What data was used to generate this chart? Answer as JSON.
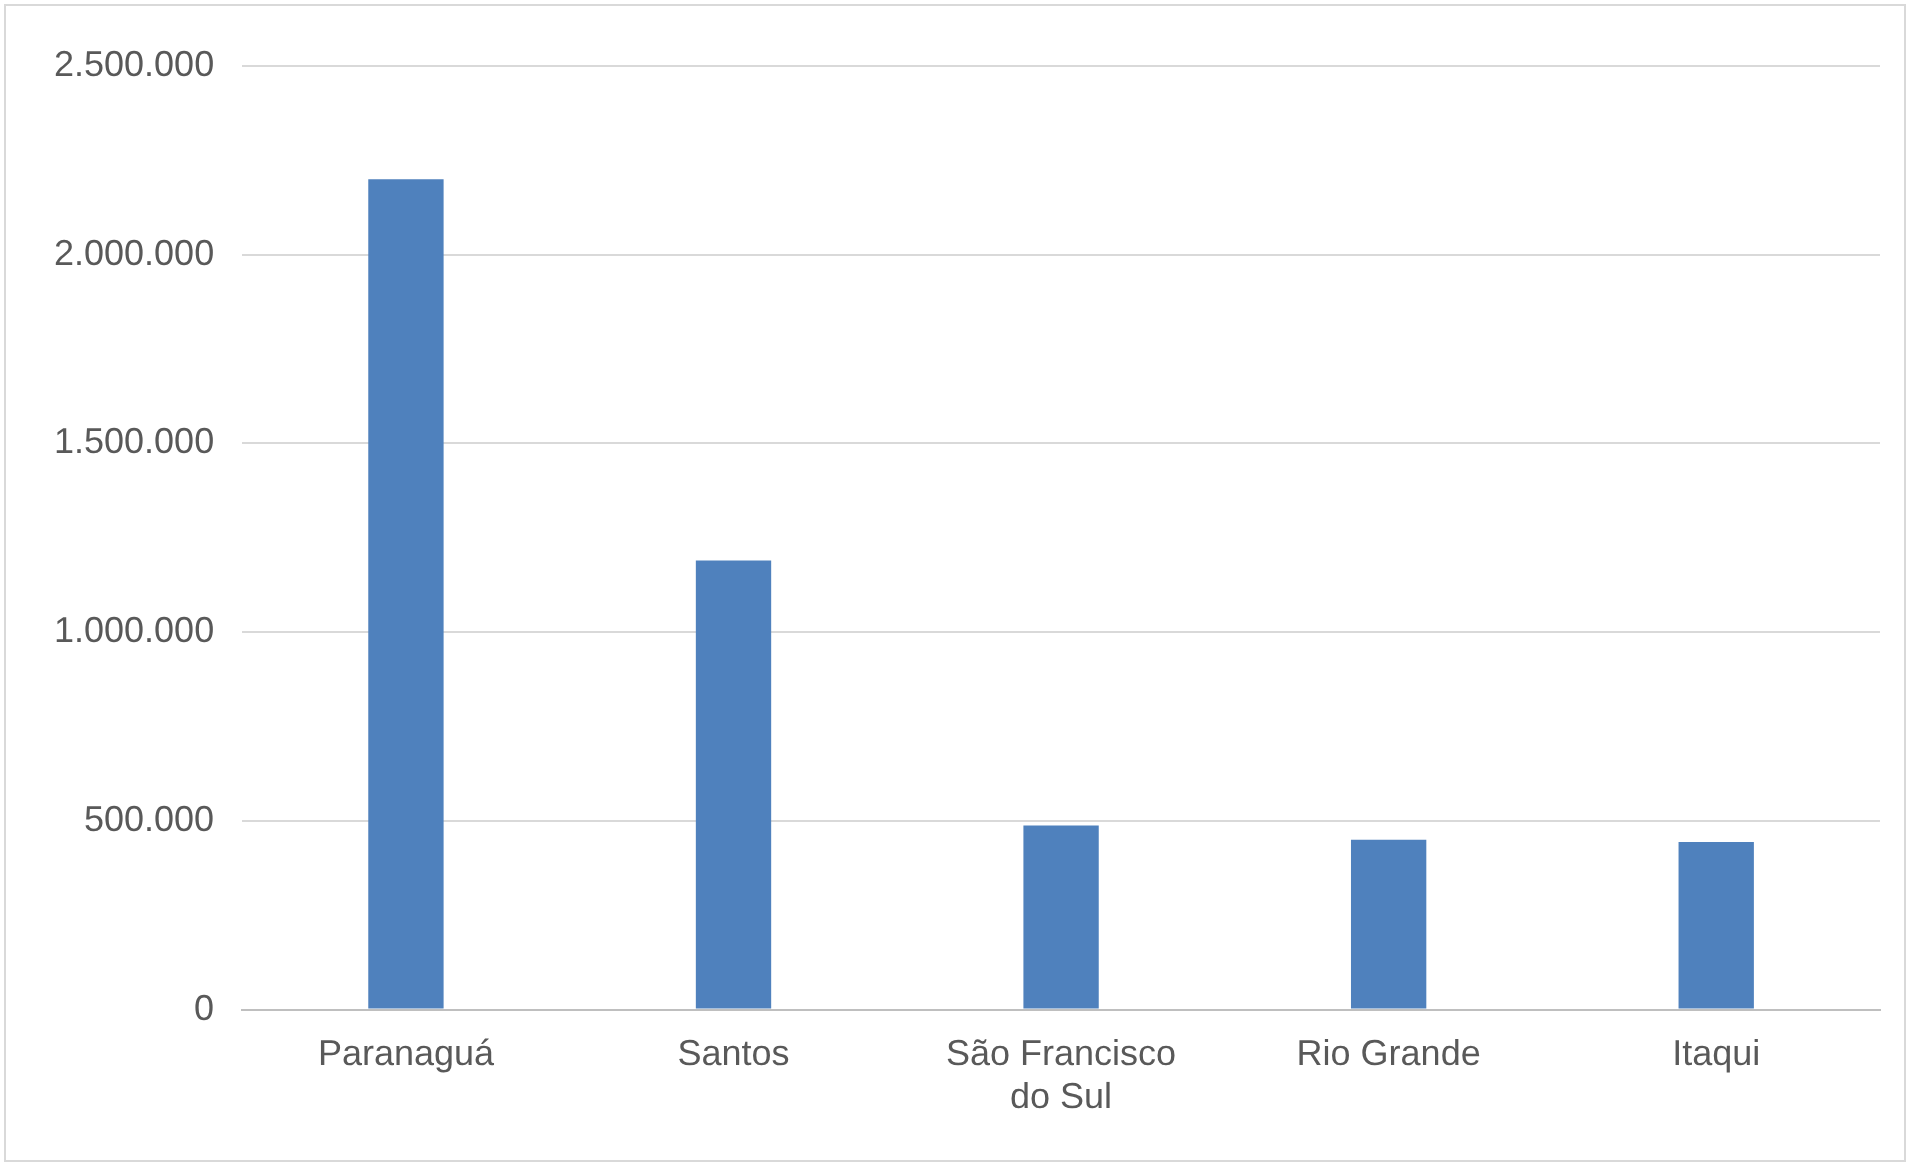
{
  "chart_data": {
    "type": "bar",
    "categories": [
      "Paranaguá",
      "Santos",
      "São Francisco do Sul",
      "Rio Grande",
      "Itaqui"
    ],
    "values": [
      2200000,
      1190000,
      488000,
      450000,
      444000
    ],
    "color": "#4f81bd",
    "ylim": [
      0,
      2500000
    ],
    "yticks": [
      {
        "value": 0,
        "label": "0"
      },
      {
        "value": 500000,
        "label": "500.000"
      },
      {
        "value": 1000000,
        "label": "1.000.000"
      },
      {
        "value": 1500000,
        "label": "1.500.000"
      },
      {
        "value": 2000000,
        "label": "2.000.000"
      },
      {
        "value": 2500000,
        "label": "2.500.000"
      }
    ],
    "grid": "y",
    "legend": false
  }
}
